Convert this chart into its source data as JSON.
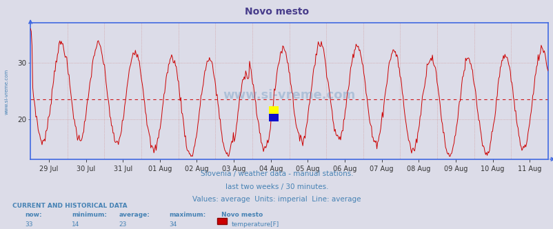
{
  "title": "Novo mesto",
  "title_color": "#483D8B",
  "title_fontsize": 10,
  "bg_color": "#dcdcdc",
  "plot_bg_color": "#dcdce8",
  "line_color": "#cc0000",
  "avg_line_color": "#cc0000",
  "avg_line_value": 23.5,
  "ylim": [
    13,
    37
  ],
  "yticks": [
    20,
    30
  ],
  "date_labels": [
    "29 Jul",
    "30 Jul",
    "31 Jul",
    "01 Aug",
    "02 Aug",
    "03 Aug",
    "04 Aug",
    "05 Aug",
    "06 Aug",
    "07 Aug",
    "08 Aug",
    "09 Aug",
    "10 Aug",
    "11 Aug"
  ],
  "footer_line1": "Slovenia / weather data - manual stations.",
  "footer_line2": "last two weeks / 30 minutes.",
  "footer_line3": "Values: average  Units: imperial  Line: average",
  "footer_color": "#4682B4",
  "watermark": "www.si-vreme.com",
  "watermark_color": "#4682B4",
  "left_label": "www.si-vreme.com",
  "left_label_color": "#4682B4",
  "current_label": "CURRENT AND HISTORICAL DATA",
  "now_val": 33,
  "min_val": 14,
  "avg_val": 23,
  "max_val": 34,
  "station": "Novo mesto",
  "sensor": "temperature[F]",
  "legend_color": "#cc0000",
  "axis_color": "#4169E1",
  "grid_color_x": "#cc8888",
  "grid_color_y": "#cc8888",
  "num_points": 672
}
